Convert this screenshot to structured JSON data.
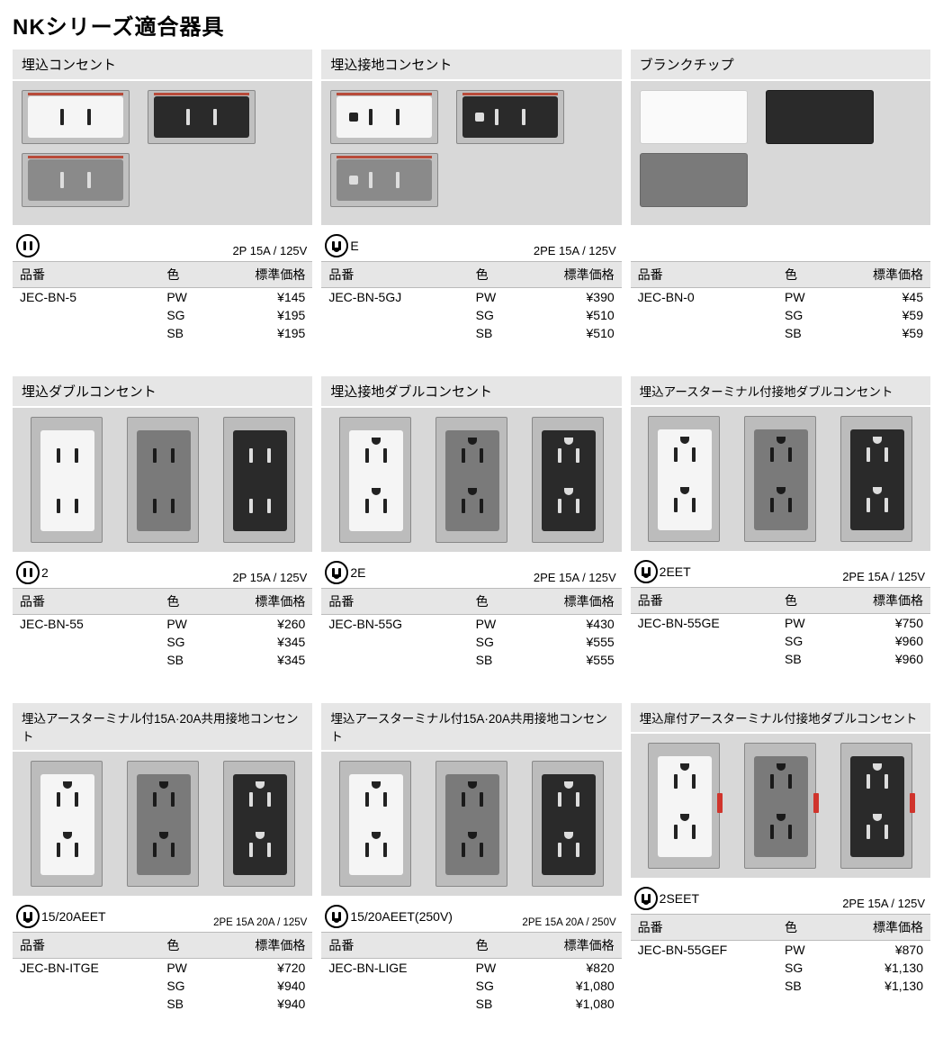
{
  "page_title": "NKシリーズ適合器具",
  "headers_label_part": "品番",
  "headers_label_color": "色",
  "headers_label_price": "標準価格",
  "colors": {
    "bg": "#ffffff",
    "tile_bg": "#e6e6e6",
    "image_bg": "#d8d8d8",
    "text": "#000000",
    "red_accent": "#d0342c",
    "outlet_trim": "#b84b3a"
  },
  "cards": [
    {
      "title": "埋込コンセント",
      "image_style": "single",
      "variants": [
        "white",
        "black",
        "gray"
      ],
      "icon_sub": "",
      "rating": "2P 15A / 125V",
      "part": "JEC-BN-5",
      "rows": [
        {
          "color": "PW",
          "price": "¥145"
        },
        {
          "color": "SG",
          "price": "¥195"
        },
        {
          "color": "SB",
          "price": "¥195"
        }
      ]
    },
    {
      "title": "埋込接地コンセント",
      "image_style": "single-ground",
      "variants": [
        "white",
        "black",
        "gray"
      ],
      "icon_sub": "E",
      "rating": "2PE 15A / 125V",
      "part": "JEC-BN-5GJ",
      "rows": [
        {
          "color": "PW",
          "price": "¥390"
        },
        {
          "color": "SG",
          "price": "¥510"
        },
        {
          "color": "SB",
          "price": "¥510"
        }
      ]
    },
    {
      "title": "ブランクチップ",
      "image_style": "chip",
      "variants": [
        "white",
        "black",
        "gray"
      ],
      "icon_sub": null,
      "rating": "",
      "part": "JEC-BN-0",
      "rows": [
        {
          "color": "PW",
          "price": "¥45"
        },
        {
          "color": "SG",
          "price": "¥59"
        },
        {
          "color": "SB",
          "price": "¥59"
        }
      ]
    },
    {
      "title": "埋込ダブルコンセント",
      "image_style": "double",
      "variants": [
        "white",
        "gray",
        "black"
      ],
      "icon_sub": "2",
      "rating": "2P 15A / 125V",
      "part": "JEC-BN-55",
      "rows": [
        {
          "color": "PW",
          "price": "¥260"
        },
        {
          "color": "SG",
          "price": "¥345"
        },
        {
          "color": "SB",
          "price": "¥345"
        }
      ]
    },
    {
      "title": "埋込接地ダブルコンセント",
      "image_style": "double-ground",
      "variants": [
        "white",
        "gray",
        "black"
      ],
      "icon_sub": "2E",
      "rating": "2PE 15A / 125V",
      "part": "JEC-BN-55G",
      "rows": [
        {
          "color": "PW",
          "price": "¥430"
        },
        {
          "color": "SG",
          "price": "¥555"
        },
        {
          "color": "SB",
          "price": "¥555"
        }
      ]
    },
    {
      "title": "埋込アースターミナル付接地ダブルコンセント",
      "title_small": true,
      "image_style": "double-ground",
      "variants": [
        "white",
        "gray",
        "black"
      ],
      "icon_sub": "2EET",
      "rating": "2PE 15A / 125V",
      "part": "JEC-BN-55GE",
      "rows": [
        {
          "color": "PW",
          "price": "¥750"
        },
        {
          "color": "SG",
          "price": "¥960"
        },
        {
          "color": "SB",
          "price": "¥960"
        }
      ]
    },
    {
      "title": "埋込アースターミナル付15A·20A共用接地コンセント",
      "title_small": true,
      "image_style": "double-ground",
      "variants": [
        "white",
        "gray",
        "black"
      ],
      "icon_sub": "15/20AEET",
      "rating": "2PE 15A 20A / 125V",
      "rating_small": true,
      "part": "JEC-BN-ITGE",
      "rows": [
        {
          "color": "PW",
          "price": "¥720"
        },
        {
          "color": "SG",
          "price": "¥940"
        },
        {
          "color": "SB",
          "price": "¥940"
        }
      ]
    },
    {
      "title": "埋込アースターミナル付15A·20A共用接地コンセント",
      "title_small": true,
      "image_style": "double-ground",
      "variants": [
        "white",
        "gray",
        "black"
      ],
      "icon_sub": "15/20AEET(250V)",
      "rating": "2PE 15A 20A / 250V",
      "rating_small": true,
      "part": "JEC-BN-LIGE",
      "rows": [
        {
          "color": "PW",
          "price": "¥820"
        },
        {
          "color": "SG",
          "price": "¥1,080"
        },
        {
          "color": "SB",
          "price": "¥1,080"
        }
      ]
    },
    {
      "title": "埋込扉付アースターミナル付接地ダブルコンセント",
      "title_small": true,
      "image_style": "double-door",
      "variants": [
        "white",
        "gray",
        "black"
      ],
      "icon_sub": "2SEET",
      "rating": "2PE 15A / 125V",
      "part": "JEC-BN-55GEF",
      "rows": [
        {
          "color": "PW",
          "price": "¥870"
        },
        {
          "color": "SG",
          "price": "¥1,130"
        },
        {
          "color": "SB",
          "price": "¥1,130"
        }
      ]
    }
  ]
}
